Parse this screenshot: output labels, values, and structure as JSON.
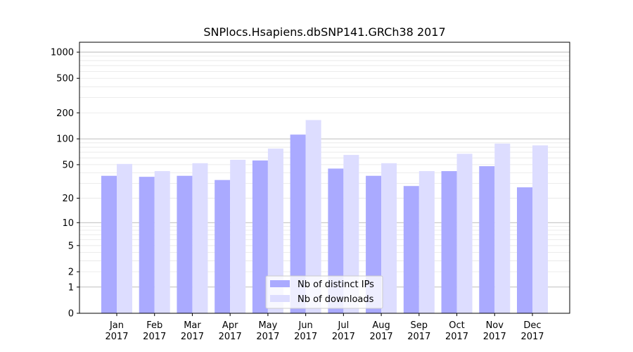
{
  "chart_data": {
    "type": "bar",
    "title": "SNPlocs.Hsapiens.dbSNP141.GRCh38 2017",
    "xlabel": "",
    "ylabel": "",
    "yscale": "log1p",
    "ylim": [
      0,
      1300
    ],
    "yticks": [
      0,
      1,
      2,
      5,
      10,
      20,
      50,
      100,
      200,
      500,
      1000
    ],
    "ytick_labels": [
      "0",
      "1",
      "2",
      "5",
      "10",
      "20",
      "50",
      "100",
      "200",
      "500",
      "1000"
    ],
    "categories": [
      {
        "month": "Jan",
        "year": "2017"
      },
      {
        "month": "Feb",
        "year": "2017"
      },
      {
        "month": "Mar",
        "year": "2017"
      },
      {
        "month": "Apr",
        "year": "2017"
      },
      {
        "month": "May",
        "year": "2017"
      },
      {
        "month": "Jun",
        "year": "2017"
      },
      {
        "month": "Jul",
        "year": "2017"
      },
      {
        "month": "Aug",
        "year": "2017"
      },
      {
        "month": "Sep",
        "year": "2017"
      },
      {
        "month": "Oct",
        "year": "2017"
      },
      {
        "month": "Nov",
        "year": "2017"
      },
      {
        "month": "Dec",
        "year": "2017"
      }
    ],
    "series": [
      {
        "name": "Nb of distinct IPs",
        "color": "#aaaaff",
        "values": [
          37,
          36,
          37,
          33,
          56,
          112,
          45,
          37,
          28,
          42,
          48,
          27
        ]
      },
      {
        "name": "Nb of downloads",
        "color": "#ddddff",
        "values": [
          51,
          42,
          52,
          57,
          77,
          165,
          65,
          52,
          42,
          67,
          88,
          84
        ]
      }
    ],
    "grid": true,
    "legend_position": "bottom-center"
  }
}
